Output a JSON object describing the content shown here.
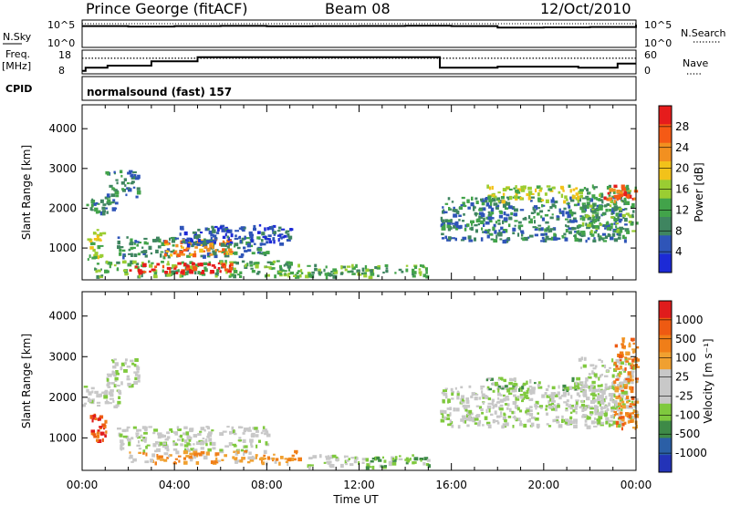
{
  "header": {
    "site": "Prince George (fitACF)",
    "beam": "Beam 08",
    "date": "12/Oct/2010"
  },
  "top_panels": {
    "nsky_label": "N.Sky",
    "nsky_ticks": [
      "10^5",
      "10^0"
    ],
    "nsearch_label": "N.Search",
    "nsearch_ticks": [
      "10^5",
      "10^0"
    ],
    "freq_label_1": "Freq.",
    "freq_label_2": "[MHz]",
    "freq_ticks": [
      "18",
      "8"
    ],
    "nave_label": "Nave",
    "nave_ticks": [
      "60",
      "0"
    ],
    "cpid_label": "CPID",
    "cpid_text": "normalsound (fast) 157"
  },
  "colors": {
    "power_scale": [
      "#1c2ad6",
      "#2f55b8",
      "#3f8560",
      "#42a34a",
      "#9acd32",
      "#f2c21a",
      "#f29020",
      "#f55a15",
      "#e61c1c"
    ],
    "velocity_scale": [
      "#2333b8",
      "#2b5fa6",
      "#3e8a47",
      "#7fc93e",
      "#c8c8c8",
      "#c8c8c8",
      "#f0a030",
      "#f07e18",
      "#ee5a12",
      "#e01c1c"
    ],
    "gray_data": "#c8c8c8"
  },
  "chart_data": [
    {
      "type": "line",
      "title": "N.Sky / N.Search",
      "x": [
        "00:00",
        "02:00",
        "04:00",
        "06:00",
        "08:00",
        "10:00",
        "12:00",
        "14:00",
        "16:00",
        "18:00",
        "20:00",
        "22:00",
        "24:00"
      ],
      "series": [
        {
          "name": "N.Sky",
          "values": [
            20000,
            16000,
            20000,
            22000,
            19000,
            20000,
            21000,
            23000,
            20000,
            10000,
            11000,
            13000,
            40000
          ]
        },
        {
          "name": "N.Search",
          "values": [
            100000,
            100000,
            100000,
            100000,
            100000,
            100000,
            100000,
            100000,
            100000,
            100000,
            100000,
            100000,
            100000
          ]
        }
      ],
      "ylim": [
        1,
        100000
      ],
      "yscale": "log"
    },
    {
      "type": "line",
      "title": "Freq. / Nave",
      "xlabel": "",
      "series": [
        {
          "name": "Freq.",
          "ylabel": "[MHz]",
          "x": [
            0,
            0.15,
            0.15,
            1.1,
            1.1,
            3.0,
            3.0,
            5.0,
            5.0,
            10.5,
            10.5,
            15.5,
            15.5,
            18.0,
            18.0,
            21.5,
            21.5,
            23.2,
            23.2,
            24.0
          ],
          "values": [
            9,
            9,
            10.5,
            10.5,
            11.5,
            11.5,
            13.5,
            13.5,
            15.5,
            15.5,
            15.5,
            15.5,
            10.5,
            10.5,
            11,
            11,
            10.5,
            10.5,
            12.5,
            12.5
          ],
          "ylim": [
            8,
            18
          ]
        },
        {
          "name": "Nave",
          "values_note": "",
          "x": [
            0,
            24
          ],
          "values": [
            42,
            42
          ],
          "ylim": [
            0,
            60
          ]
        }
      ]
    },
    {
      "type": "heatmap",
      "title": "Power",
      "ylabel": "Slant Range [km]",
      "colorbar_label": "Power [dB]",
      "colorbar_ticks": [
        "28",
        "24",
        "20",
        "16",
        "12",
        "8",
        "4"
      ],
      "yticks": [
        "4000",
        "3000",
        "2000",
        "1000"
      ],
      "ylim": [
        200,
        4600
      ],
      "xlim": [
        0,
        24
      ],
      "echo_regions": [
        {
          "t0": 0.0,
          "t1": 1.6,
          "r0": 1900,
          "r1": 2300,
          "level": 2
        },
        {
          "t0": 1.0,
          "t1": 2.4,
          "r0": 2300,
          "r1": 3000,
          "level": 2
        },
        {
          "t0": 0.2,
          "t1": 0.9,
          "r0": 700,
          "r1": 1500,
          "level": 4
        },
        {
          "t0": 0.5,
          "t1": 9.5,
          "r0": 300,
          "r1": 700,
          "level": 3
        },
        {
          "t0": 1.5,
          "t1": 8.0,
          "r0": 800,
          "r1": 1300,
          "level": 2
        },
        {
          "t0": 2.0,
          "t1": 6.5,
          "r0": 400,
          "r1": 650,
          "level": 8
        },
        {
          "t0": 3.5,
          "t1": 6.5,
          "r0": 850,
          "r1": 1250,
          "level": 6
        },
        {
          "t0": 4.0,
          "t1": 9.0,
          "r0": 1100,
          "r1": 1600,
          "level": 1
        },
        {
          "t0": 9.5,
          "t1": 15.0,
          "r0": 300,
          "r1": 600,
          "level": 3
        },
        {
          "t0": 15.5,
          "t1": 23.5,
          "r0": 1200,
          "r1": 2300,
          "level": 2
        },
        {
          "t0": 17.5,
          "t1": 21.5,
          "r0": 2200,
          "r1": 2600,
          "level": 4
        },
        {
          "t0": 21.5,
          "t1": 24.0,
          "r0": 1400,
          "r1": 2600,
          "level": 3
        },
        {
          "t0": 22.5,
          "t1": 24.0,
          "r0": 2200,
          "r1": 2600,
          "level": 7
        }
      ]
    },
    {
      "type": "heatmap",
      "title": "Velocity",
      "ylabel": "Slant Range [km]",
      "xlabel": "Time UT",
      "colorbar_label": "Velocity [m s⁻¹]",
      "colorbar_ticks": [
        "1000",
        "500",
        "100",
        "25",
        "-25",
        "-100",
        "-500",
        "-1000"
      ],
      "yticks": [
        "4000",
        "3000",
        "2000",
        "1000"
      ],
      "xticks": [
        "00:00",
        "04:00",
        "08:00",
        "12:00",
        "16:00",
        "20:00",
        "00:00"
      ],
      "ylim": [
        200,
        4600
      ],
      "xlim": [
        0,
        24
      ],
      "echo_regions": [
        {
          "t0": 0.0,
          "t1": 1.6,
          "r0": 1800,
          "r1": 2300,
          "level": 4
        },
        {
          "t0": 1.0,
          "t1": 2.4,
          "r0": 2300,
          "r1": 3000,
          "level": 4
        },
        {
          "t0": 0.3,
          "t1": 1.0,
          "r0": 900,
          "r1": 1600,
          "level": 8
        },
        {
          "t0": 1.5,
          "t1": 8.0,
          "r0": 700,
          "r1": 1300,
          "level": 4
        },
        {
          "t0": 2.0,
          "t1": 9.5,
          "r0": 400,
          "r1": 700,
          "level": 6
        },
        {
          "t0": 9.5,
          "t1": 12.0,
          "r0": 300,
          "r1": 600,
          "level": 4
        },
        {
          "t0": 12.0,
          "t1": 15.0,
          "r0": 300,
          "r1": 600,
          "level": 3
        },
        {
          "t0": 15.5,
          "t1": 23.5,
          "r0": 1300,
          "r1": 2300,
          "level": 4
        },
        {
          "t0": 17.5,
          "t1": 21.5,
          "r0": 2200,
          "r1": 2500,
          "level": 3
        },
        {
          "t0": 21.5,
          "t1": 24.0,
          "r0": 1500,
          "r1": 3000,
          "level": 4
        },
        {
          "t0": 23.0,
          "t1": 24.0,
          "r0": 1200,
          "r1": 3500,
          "level": 7
        }
      ]
    }
  ]
}
